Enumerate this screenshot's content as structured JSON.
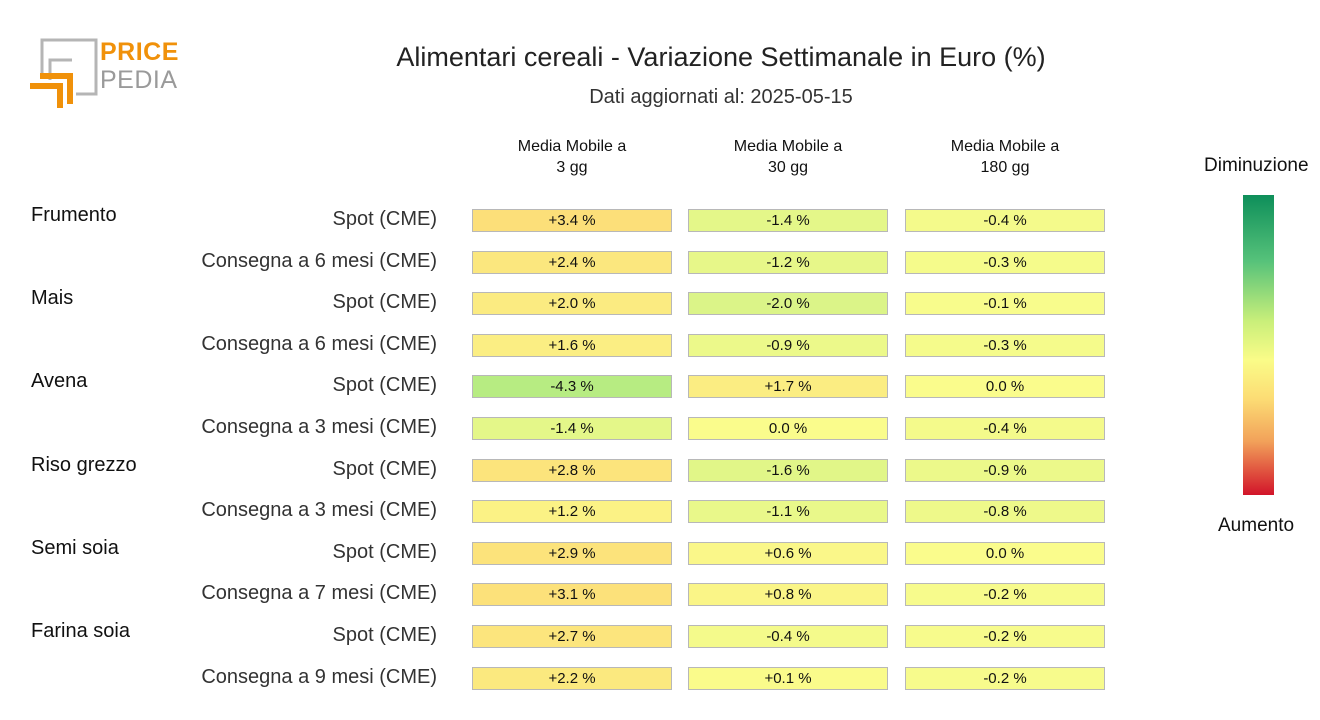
{
  "logo": {
    "line1": "PRICE",
    "line2": "PEDIA"
  },
  "title": "Alimentari cereali - Variazione Settimanale in Euro (%)",
  "subtitle": "Dati aggiornati al: 2025-05-15",
  "legend": {
    "top": "Diminuzione",
    "bottom": "Aumento"
  },
  "chart_data": {
    "type": "heatmap",
    "title": "Alimentari cereali - Variazione Settimanale in Euro (%)",
    "columns": [
      [
        "Media Mobile a",
        "3 gg"
      ],
      [
        "Media Mobile a",
        "30 gg"
      ],
      [
        "Media Mobile a",
        "180 gg"
      ]
    ],
    "groups": [
      "Frumento",
      "Mais",
      "Avena",
      "Riso grezzo",
      "Semi soia",
      "Farina soia"
    ],
    "rows": [
      {
        "group": "Frumento",
        "label": "Spot (CME)",
        "values": [
          3.4,
          -1.4,
          -0.4
        ],
        "texts": [
          "+3.4 %",
          "-1.4 %",
          "-0.4 %"
        ]
      },
      {
        "group": "",
        "label": "Consegna a 6 mesi (CME)",
        "values": [
          2.4,
          -1.2,
          -0.3
        ],
        "texts": [
          "+2.4 %",
          "-1.2 %",
          "-0.3 %"
        ]
      },
      {
        "group": "Mais",
        "label": "Spot (CME)",
        "values": [
          2.0,
          -2.0,
          -0.1
        ],
        "texts": [
          "+2.0 %",
          "-2.0 %",
          "-0.1 %"
        ]
      },
      {
        "group": "",
        "label": "Consegna a 6 mesi (CME)",
        "values": [
          1.6,
          -0.9,
          -0.3
        ],
        "texts": [
          "+1.6 %",
          "-0.9 %",
          "-0.3 %"
        ]
      },
      {
        "group": "Avena",
        "label": "Spot (CME)",
        "values": [
          -4.3,
          1.7,
          0.0
        ],
        "texts": [
          "-4.3 %",
          "+1.7 %",
          "0.0 %"
        ]
      },
      {
        "group": "",
        "label": "Consegna a 3 mesi (CME)",
        "values": [
          -1.4,
          0.0,
          -0.4
        ],
        "texts": [
          "-1.4 %",
          "0.0 %",
          "-0.4 %"
        ]
      },
      {
        "group": "Riso grezzo",
        "label": "Spot (CME)",
        "values": [
          2.8,
          -1.6,
          -0.9
        ],
        "texts": [
          "+2.8 %",
          "-1.6 %",
          "-0.9 %"
        ]
      },
      {
        "group": "",
        "label": "Consegna a 3 mesi (CME)",
        "values": [
          1.2,
          -1.1,
          -0.8
        ],
        "texts": [
          "+1.2 %",
          "-1.1 %",
          "-0.8 %"
        ]
      },
      {
        "group": "Semi soia",
        "label": "Spot (CME)",
        "values": [
          2.9,
          0.6,
          0.0
        ],
        "texts": [
          "+2.9 %",
          "+0.6 %",
          "0.0 %"
        ]
      },
      {
        "group": "",
        "label": "Consegna a 7 mesi (CME)",
        "values": [
          3.1,
          0.8,
          -0.2
        ],
        "texts": [
          "+3.1 %",
          "+0.8 %",
          "-0.2 %"
        ]
      },
      {
        "group": "Farina soia",
        "label": "Spot (CME)",
        "values": [
          2.7,
          -0.4,
          -0.2
        ],
        "texts": [
          "+2.7 %",
          "-0.4 %",
          "-0.2 %"
        ]
      },
      {
        "group": "",
        "label": "Consegna a 9 mesi (CME)",
        "values": [
          2.2,
          0.1,
          -0.2
        ],
        "texts": [
          "+2.2 %",
          "+0.1 %",
          "-0.2 %"
        ]
      }
    ],
    "color_scale": {
      "low": "#0e8f5a",
      "mid": "#fafc88",
      "high": "#d2142a"
    }
  }
}
